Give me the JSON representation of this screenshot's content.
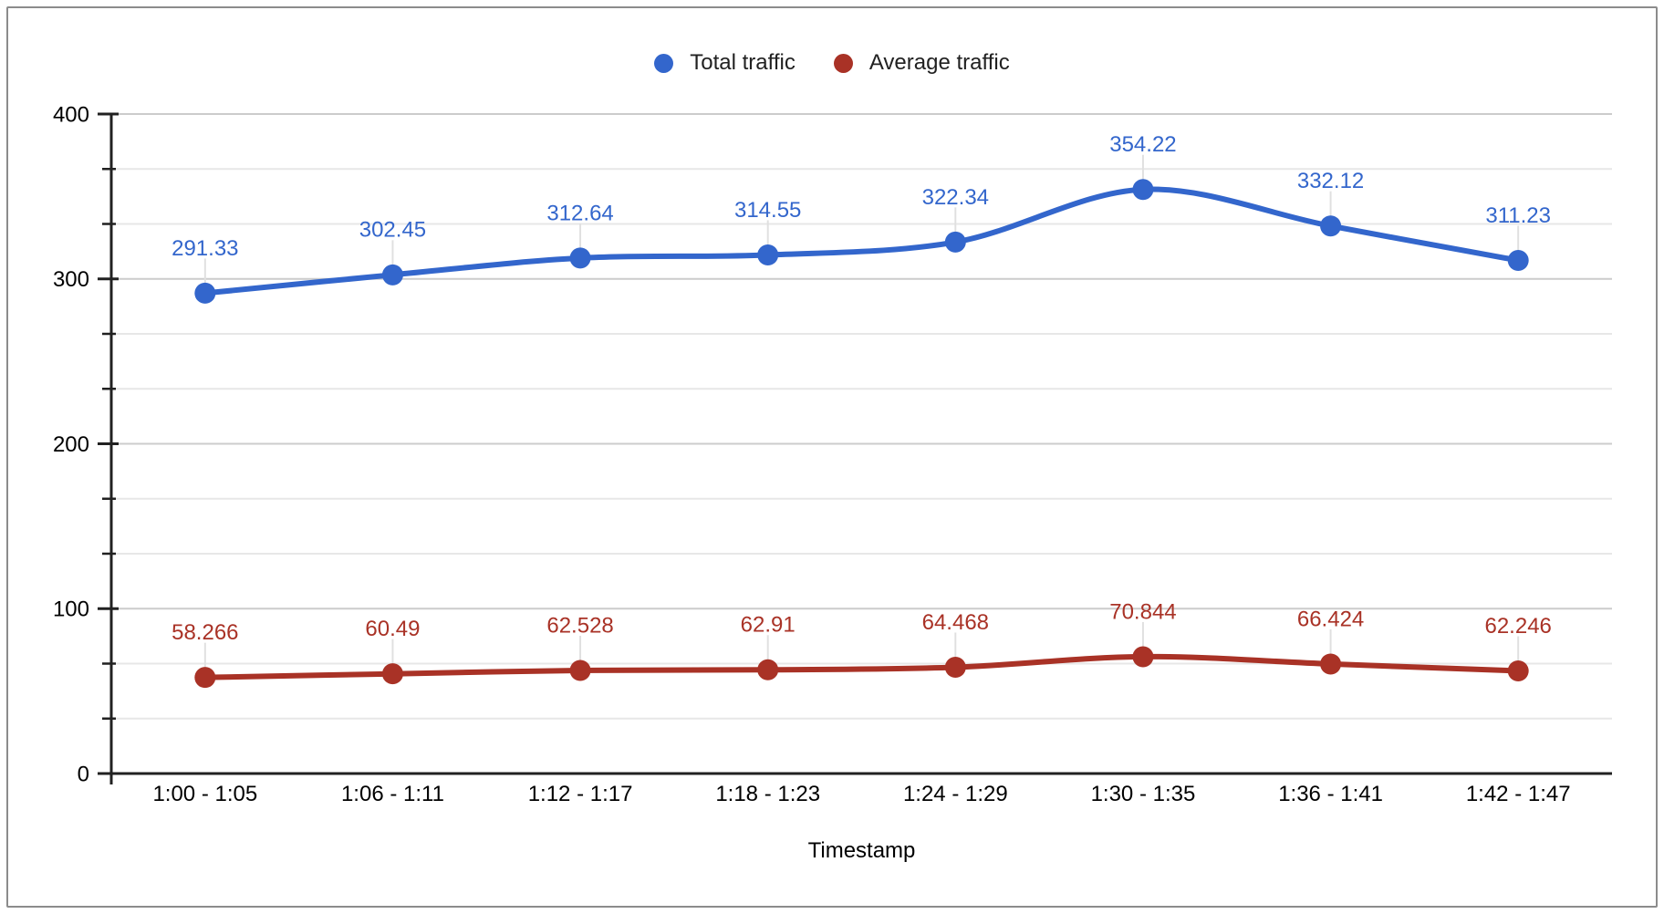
{
  "chart_data": {
    "type": "line",
    "smooth": true,
    "point_labels": true,
    "grid": true,
    "legend_position": "top",
    "x": [
      "1:00 - 1:05",
      "1:06 - 1:11",
      "1:12 - 1:17",
      "1:18 - 1:23",
      "1:24 - 1:29",
      "1:30 - 1:35",
      "1:36 - 1:41",
      "1:42 - 1:47"
    ],
    "series": [
      {
        "name": "Total traffic",
        "color": "#3366CC",
        "values": [
          291.33,
          302.45,
          312.64,
          314.55,
          322.34,
          354.22,
          332.12,
          311.23
        ]
      },
      {
        "name": "Average traffic",
        "color": "#A93226",
        "values": [
          58.266,
          60.49,
          62.528,
          62.91,
          64.468,
          70.844,
          66.424,
          62.246
        ]
      }
    ],
    "xlabel": "Timestamp",
    "ylabel": "",
    "ylim": [
      0,
      400
    ],
    "y_major_ticks": [
      0,
      100,
      200,
      300,
      400
    ],
    "y_minor_ticks_per_major": 2
  },
  "colors": {
    "axis_line": "#212121",
    "major_gridline": "#cccccc",
    "minor_gridline": "#e7e7e7",
    "leader_line": "#e0e0e0",
    "tick_label": "#000000",
    "axis_title": "#000000",
    "frame_border": "#8c8c8c",
    "background": "#ffffff"
  }
}
